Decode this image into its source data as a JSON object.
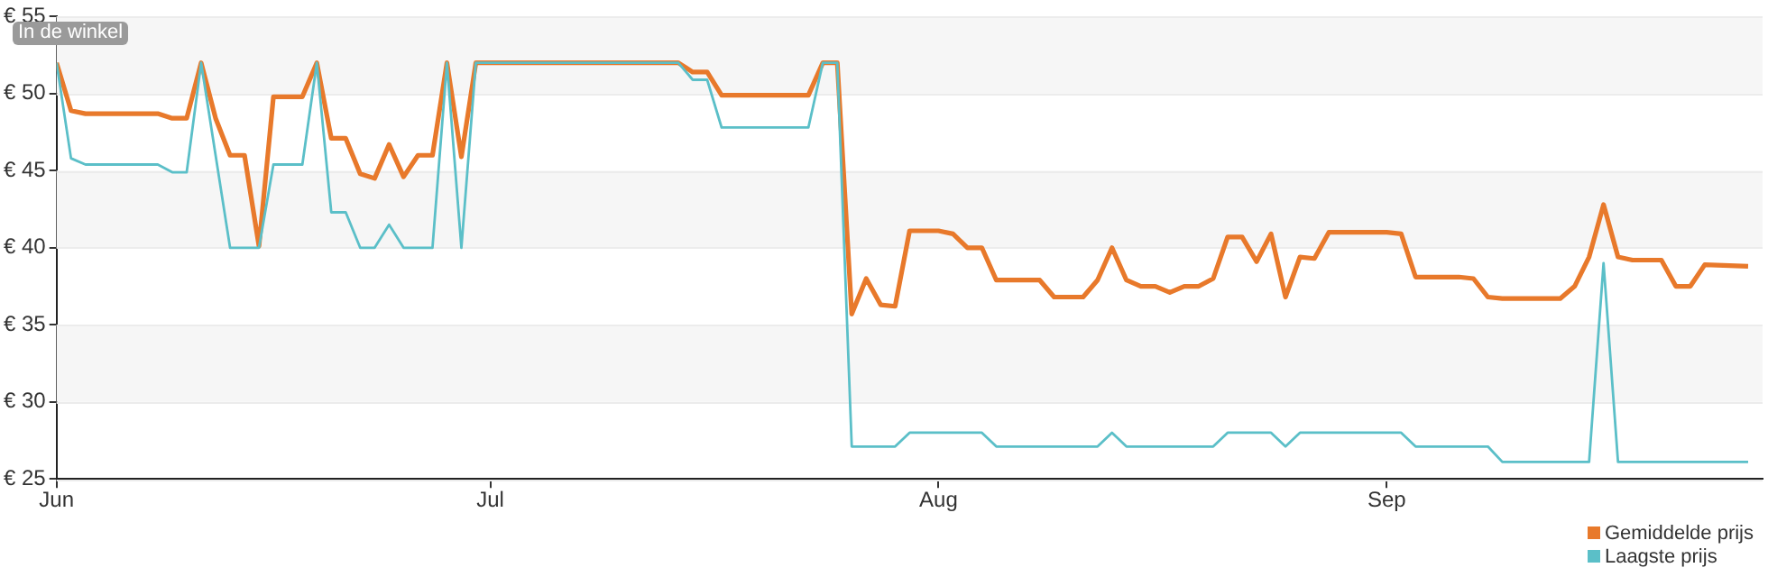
{
  "chart_data": {
    "type": "line",
    "annotations": [
      "In de winkel"
    ],
    "xlim": [
      "--06-01",
      "--09-27"
    ],
    "xticks": [
      {
        "value": "--06-01",
        "label": "Jun"
      },
      {
        "value": "--07-01",
        "label": "Jul"
      },
      {
        "value": "--08-01",
        "label": "Aug"
      },
      {
        "value": "--09-01",
        "label": "Sep"
      }
    ],
    "ylim": [
      25,
      55
    ],
    "yticks": [
      {
        "value": 25,
        "label": "€ 25"
      },
      {
        "value": 30,
        "label": "€ 30"
      },
      {
        "value": 35,
        "label": "€ 35"
      },
      {
        "value": 40,
        "label": "€ 40"
      },
      {
        "value": 45,
        "label": "€ 45"
      },
      {
        "value": 50,
        "label": "€ 50"
      },
      {
        "value": 55,
        "label": "€ 55"
      }
    ],
    "grid": "y",
    "legend": "bottom right",
    "marker": "none",
    "line_style": "solid",
    "series": [
      {
        "name": "Gemiddelde prijs",
        "color": "#e8792b",
        "x": [
          "--06-01",
          "--06-02",
          "--06-03",
          "--06-08",
          "--06-09",
          "--06-10",
          "--06-11",
          "--06-12",
          "--06-13",
          "--06-14",
          "--06-15",
          "--06-16",
          "--06-18",
          "--06-19",
          "--06-20",
          "--06-21",
          "--06-22",
          "--06-23",
          "--06-24",
          "--06-25",
          "--06-26",
          "--06-27",
          "--06-28",
          "--06-29",
          "--06-30",
          "--07-14",
          "--07-15",
          "--07-16",
          "--07-17",
          "--07-23",
          "--07-24",
          "--07-25",
          "--07-26",
          "--07-27",
          "--07-28",
          "--07-29",
          "--07-30",
          "--08-01",
          "--08-02",
          "--08-03",
          "--08-04",
          "--08-05",
          "--08-08",
          "--08-09",
          "--08-11",
          "--08-12",
          "--08-13",
          "--08-14",
          "--08-15",
          "--08-16",
          "--08-17",
          "--08-18",
          "--08-19",
          "--08-20",
          "--08-21",
          "--08-22",
          "--08-23",
          "--08-24",
          "--08-25",
          "--08-26",
          "--08-27",
          "--08-28",
          "--09-01",
          "--09-02",
          "--09-03",
          "--09-06",
          "--09-07",
          "--09-08",
          "--09-09",
          "--09-13",
          "--09-14",
          "--09-15",
          "--09-16",
          "--09-17",
          "--09-18",
          "--09-20",
          "--09-21",
          "--09-22",
          "--09-23",
          "--09-26"
        ],
        "values": [
          52.0,
          48.9,
          48.7,
          48.7,
          48.4,
          48.4,
          52.0,
          48.4,
          46.0,
          46.0,
          40.1,
          49.8,
          49.8,
          52.0,
          47.1,
          47.1,
          44.8,
          44.5,
          46.7,
          44.6,
          46.0,
          46.0,
          52.0,
          45.9,
          52.0,
          52.0,
          51.4,
          51.4,
          49.9,
          49.9,
          52.0,
          52.0,
          35.7,
          38.0,
          36.3,
          36.2,
          41.1,
          41.1,
          40.9,
          40.0,
          40.0,
          37.9,
          37.9,
          36.8,
          36.8,
          37.9,
          40.0,
          37.9,
          37.5,
          37.5,
          37.1,
          37.5,
          37.5,
          38.0,
          40.7,
          40.7,
          39.1,
          40.9,
          36.8,
          39.4,
          39.3,
          41.0,
          41.0,
          40.9,
          38.1,
          38.1,
          38.0,
          36.8,
          36.7,
          36.7,
          37.5,
          39.4,
          42.8,
          39.4,
          39.2,
          39.2,
          37.5,
          37.5,
          38.9,
          38.8
        ]
      },
      {
        "name": "Laagste prijs",
        "color": "#5bbfc8",
        "x": [
          "--06-01",
          "--06-02",
          "--06-03",
          "--06-08",
          "--06-09",
          "--06-10",
          "--06-11",
          "--06-13",
          "--06-15",
          "--06-16",
          "--06-18",
          "--06-19",
          "--06-20",
          "--06-21",
          "--06-22",
          "--06-23",
          "--06-24",
          "--06-25",
          "--06-27",
          "--06-28",
          "--06-29",
          "--06-30",
          "--07-14",
          "--07-15",
          "--07-16",
          "--07-17",
          "--07-23",
          "--07-24",
          "--07-25",
          "--07-26",
          "--07-29",
          "--07-30",
          "--08-04",
          "--08-05",
          "--08-12",
          "--08-13",
          "--08-14",
          "--08-20",
          "--08-21",
          "--08-24",
          "--08-25",
          "--08-26",
          "--09-02",
          "--09-03",
          "--09-08",
          "--09-09",
          "--09-15",
          "--09-16",
          "--09-17",
          "--09-26"
        ],
        "values": [
          52.0,
          45.8,
          45.4,
          45.4,
          44.9,
          44.9,
          52.0,
          40.0,
          40.0,
          45.4,
          45.4,
          52.0,
          42.3,
          42.3,
          40.0,
          40.0,
          41.5,
          40.0,
          40.0,
          52.0,
          40.0,
          52.0,
          52.0,
          50.9,
          50.9,
          47.8,
          47.8,
          52.0,
          52.0,
          27.1,
          27.1,
          28.0,
          28.0,
          27.1,
          27.1,
          28.0,
          27.1,
          27.1,
          28.0,
          28.0,
          27.1,
          28.0,
          28.0,
          27.1,
          27.1,
          26.1,
          26.1,
          39.0,
          26.1,
          26.1
        ]
      }
    ]
  }
}
